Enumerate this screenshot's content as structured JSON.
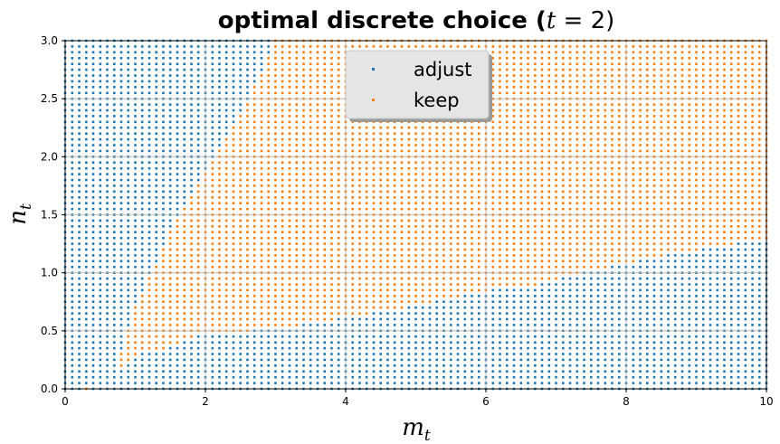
{
  "chart_data": {
    "type": "scatter",
    "title": "optimal discrete choice (t = 2)",
    "title_parts": {
      "prefix": "optimal discrete choice (",
      "var": "t",
      "suffix": " = 2)"
    },
    "xlabel": {
      "base": "m",
      "sub": "t"
    },
    "ylabel": {
      "base": "n",
      "sub": "t"
    },
    "xlim": [
      0,
      10
    ],
    "ylim": [
      0,
      3
    ],
    "xticks": [
      "0",
      "2",
      "4",
      "6",
      "8",
      "10"
    ],
    "yticks": [
      "0.0",
      "0.5",
      "1.0",
      "1.5",
      "2.0",
      "2.5",
      "3.0"
    ],
    "grid": true,
    "legend_placement": "upper-center",
    "grid_spec": {
      "x_start": 0,
      "x_step": 0.1,
      "x_count": 101,
      "y_start": 0,
      "y_step": 0.05,
      "y_count": 61
    },
    "boundary": {
      "description": "keep region lies between lower and upper n for each m",
      "lower": [
        [
          0.3,
          0.0
        ],
        [
          0.6,
          0.1
        ],
        [
          0.8,
          0.2
        ],
        [
          1.0,
          0.3
        ],
        [
          1.4,
          0.35
        ],
        [
          1.8,
          0.45
        ],
        [
          3.0,
          0.52
        ],
        [
          4.0,
          0.62
        ],
        [
          5.0,
          0.72
        ],
        [
          6.0,
          0.85
        ],
        [
          6.7,
          0.9
        ],
        [
          7.3,
          1.0
        ],
        [
          8.0,
          1.08
        ],
        [
          9.0,
          1.2
        ],
        [
          10.0,
          1.3
        ]
      ],
      "upper": [
        [
          0.35,
          0.0
        ],
        [
          0.7,
          0.1
        ],
        [
          0.8,
          0.3
        ],
        [
          1.0,
          0.7
        ],
        [
          1.2,
          0.95
        ],
        [
          1.5,
          1.35
        ],
        [
          2.0,
          1.85
        ],
        [
          2.5,
          2.35
        ],
        [
          3.0,
          3.0
        ],
        [
          10.0,
          3.0
        ]
      ]
    },
    "series": [
      {
        "name": "adjust",
        "color": "#1f77b4"
      },
      {
        "name": "keep",
        "color": "#ff7f0e"
      }
    ]
  }
}
